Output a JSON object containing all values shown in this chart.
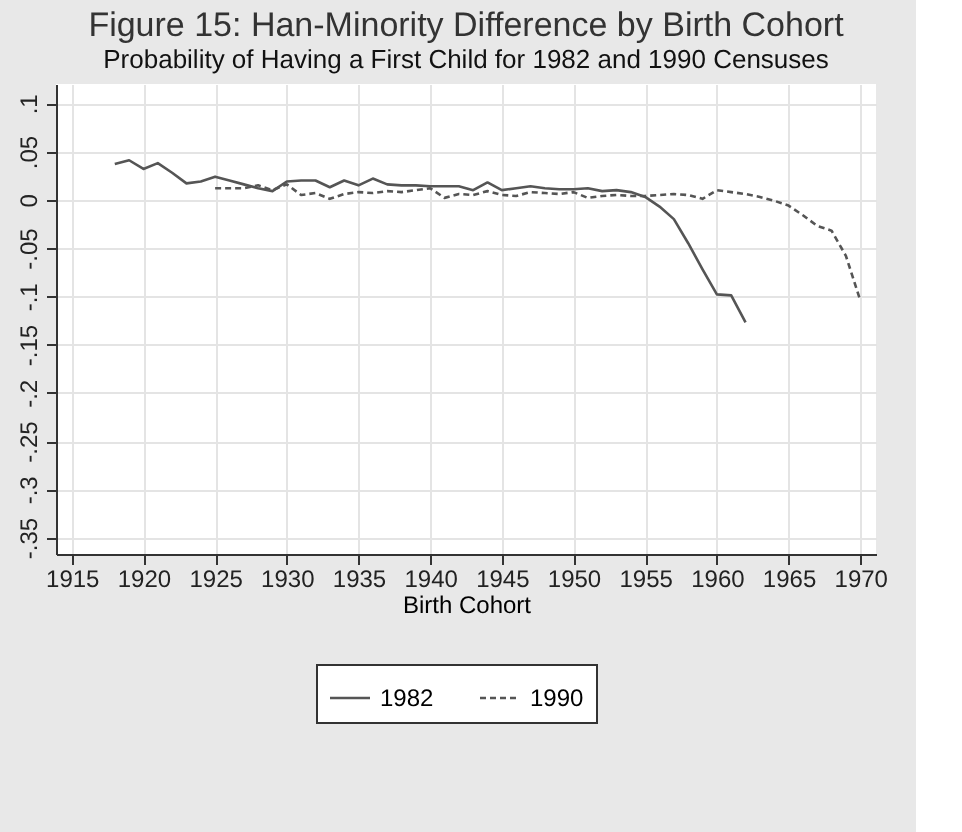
{
  "chart_data": {
    "type": "line",
    "title": "Figure 15: Han-Minority Difference by Birth Cohort",
    "subtitle": "Probability of Having a First Child for 1982 and 1990 Censuses",
    "xlabel": "Birth Cohort",
    "xlim": [
      1913.9,
      1971.1
    ],
    "xticks": [
      1915,
      1920,
      1925,
      1930,
      1935,
      1940,
      1945,
      1950,
      1955,
      1960,
      1965,
      1970
    ],
    "ylim": [
      -0.367,
      0.12
    ],
    "yticks": [
      {
        "value": -0.35,
        "label": "-.35"
      },
      {
        "value": -0.3,
        "label": "-.3"
      },
      {
        "value": -0.25,
        "label": "-.25"
      },
      {
        "value": -0.2,
        "label": "-.2"
      },
      {
        "value": -0.15,
        "label": "-.15"
      },
      {
        "value": -0.1,
        "label": "-.1"
      },
      {
        "value": -0.05,
        "label": "-.05"
      },
      {
        "value": 0,
        "label": "0"
      },
      {
        "value": 0.05,
        "label": ".05"
      },
      {
        "value": 0.1,
        "label": ".1"
      }
    ],
    "grid": true,
    "legend": "bottom",
    "series": [
      {
        "name": "1982",
        "color": "#555555",
        "line_style": "solid",
        "x": [
          1918,
          1919,
          1920,
          1921,
          1922,
          1923,
          1924,
          1925,
          1926,
          1927,
          1928,
          1929,
          1930,
          1931,
          1932,
          1933,
          1934,
          1935,
          1936,
          1937,
          1938,
          1939,
          1940,
          1941,
          1942,
          1943,
          1944,
          1945,
          1946,
          1947,
          1948,
          1949,
          1950,
          1951,
          1952,
          1953,
          1954,
          1955,
          1956,
          1957,
          1958,
          1959,
          1960,
          1961,
          1962
        ],
        "values": [
          0.037,
          0.041,
          0.032,
          0.038,
          0.028,
          0.017,
          0.019,
          0.024,
          0.02,
          0.016,
          0.012,
          0.009,
          0.019,
          0.02,
          0.02,
          0.013,
          0.02,
          0.015,
          0.022,
          0.016,
          0.015,
          0.015,
          0.014,
          0.014,
          0.014,
          0.01,
          0.018,
          0.01,
          0.012,
          0.014,
          0.012,
          0.011,
          0.011,
          0.012,
          0.009,
          0.01,
          0.008,
          0.003,
          -0.007,
          -0.02,
          -0.045,
          -0.072,
          -0.098,
          -0.099,
          -0.127
        ]
      },
      {
        "name": "1990",
        "color": "#555555",
        "line_style": "dashed",
        "x": [
          1925,
          1926,
          1927,
          1928,
          1929,
          1930,
          1931,
          1932,
          1933,
          1934,
          1935,
          1936,
          1937,
          1938,
          1939,
          1940,
          1941,
          1942,
          1943,
          1944,
          1945,
          1946,
          1947,
          1948,
          1949,
          1950,
          1951,
          1952,
          1953,
          1954,
          1955,
          1956,
          1957,
          1958,
          1959,
          1960,
          1961,
          1962,
          1963,
          1964,
          1965,
          1966,
          1967,
          1968,
          1969,
          1970
        ],
        "values": [
          0.012,
          0.012,
          0.012,
          0.015,
          0.01,
          0.016,
          0.005,
          0.007,
          0.001,
          0.006,
          0.008,
          0.007,
          0.009,
          0.008,
          0.01,
          0.012,
          0.002,
          0.006,
          0.005,
          0.009,
          0.005,
          0.004,
          0.008,
          0.007,
          0.006,
          0.008,
          0.002,
          0.004,
          0.005,
          0.004,
          0.004,
          0.005,
          0.006,
          0.005,
          0.001,
          0.01,
          0.008,
          0.006,
          0.003,
          -0.001,
          -0.006,
          -0.016,
          -0.027,
          -0.032,
          -0.058,
          -0.104
        ]
      }
    ]
  }
}
